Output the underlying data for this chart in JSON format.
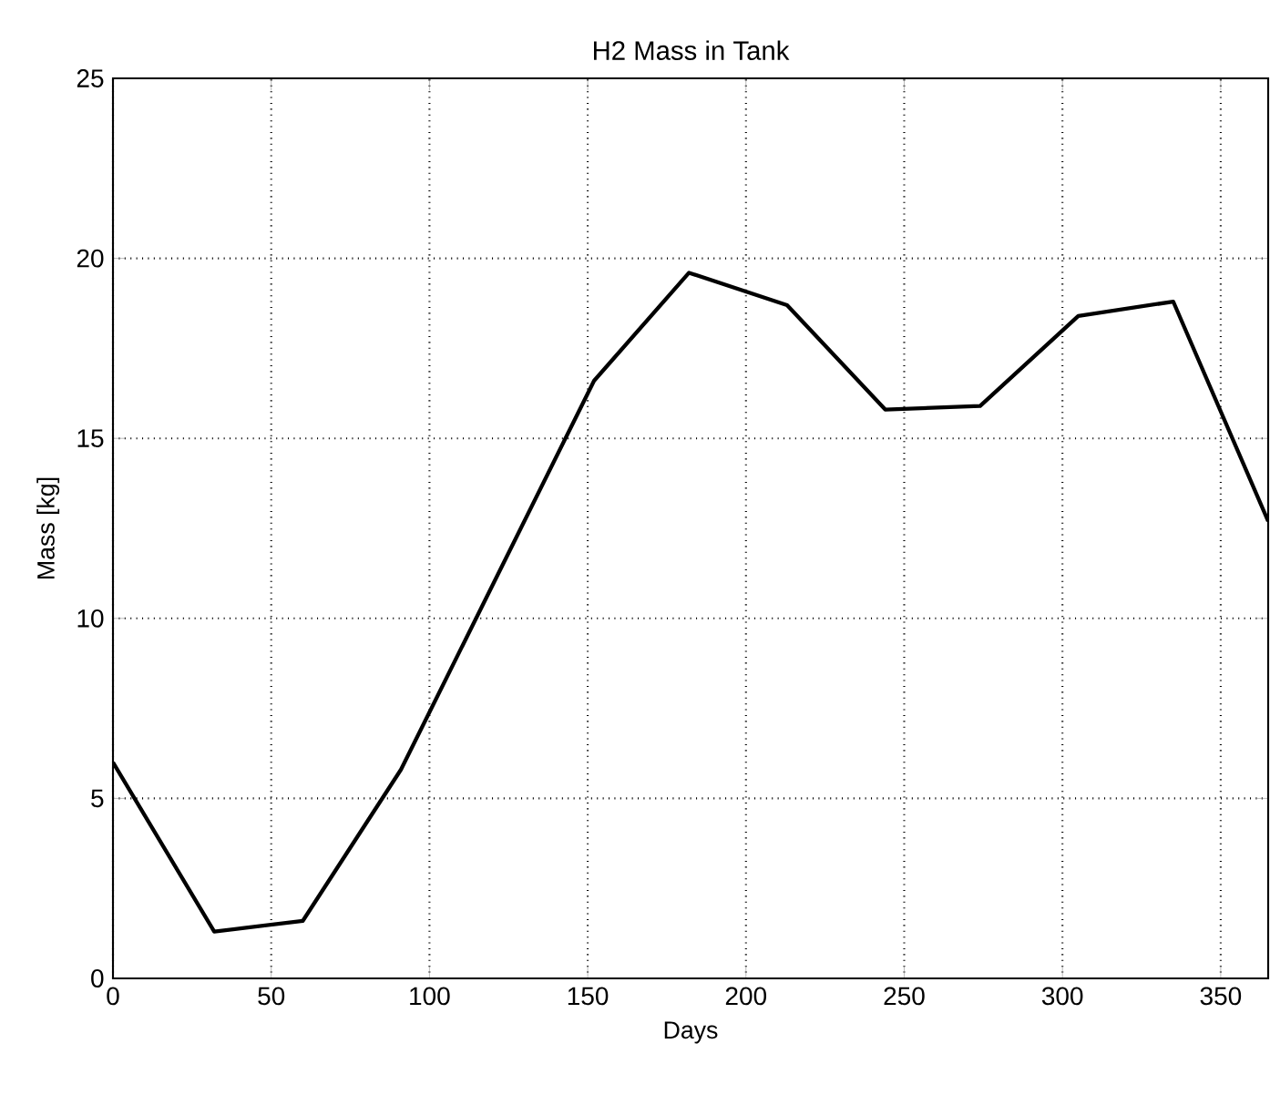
{
  "chart_data": {
    "type": "line",
    "title": "H2 Mass in Tank",
    "xlabel": "Days",
    "ylabel": "Mass [kg]",
    "x": [
      0,
      32,
      60,
      91,
      152,
      182,
      213,
      244,
      274,
      305,
      335,
      365
    ],
    "series": [
      {
        "color": "#000000",
        "values": [
          6.0,
          1.3,
          1.6,
          5.8,
          16.6,
          19.6,
          18.7,
          15.8,
          15.9,
          18.4,
          18.8,
          12.7
        ]
      }
    ],
    "xlim": [
      0,
      365
    ],
    "ylim": [
      0,
      25
    ],
    "xticks": [
      0,
      50,
      100,
      150,
      200,
      250,
      300,
      350
    ],
    "yticks": [
      0,
      5,
      10,
      15,
      20,
      25
    ],
    "grid": true,
    "marker": "none",
    "line_style": "solid"
  }
}
